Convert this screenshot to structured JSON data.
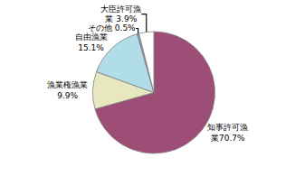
{
  "chart_data": {
    "type": "pie",
    "values": [
      70.7,
      9.9,
      15.1,
      0.5,
      3.9
    ],
    "value_labels": [
      "知事許可漁\n業70.7%",
      "漁業権漁業\n9.9%",
      "自由漁業\n15.1%",
      "その他 0.5%",
      "大臣許可漁\n業 3.9%"
    ],
    "colors": [
      "#9e4d76",
      "#e8e8c0",
      "#b0dde8",
      "#9090c0",
      "#ffffff"
    ],
    "data_labels": true
  }
}
